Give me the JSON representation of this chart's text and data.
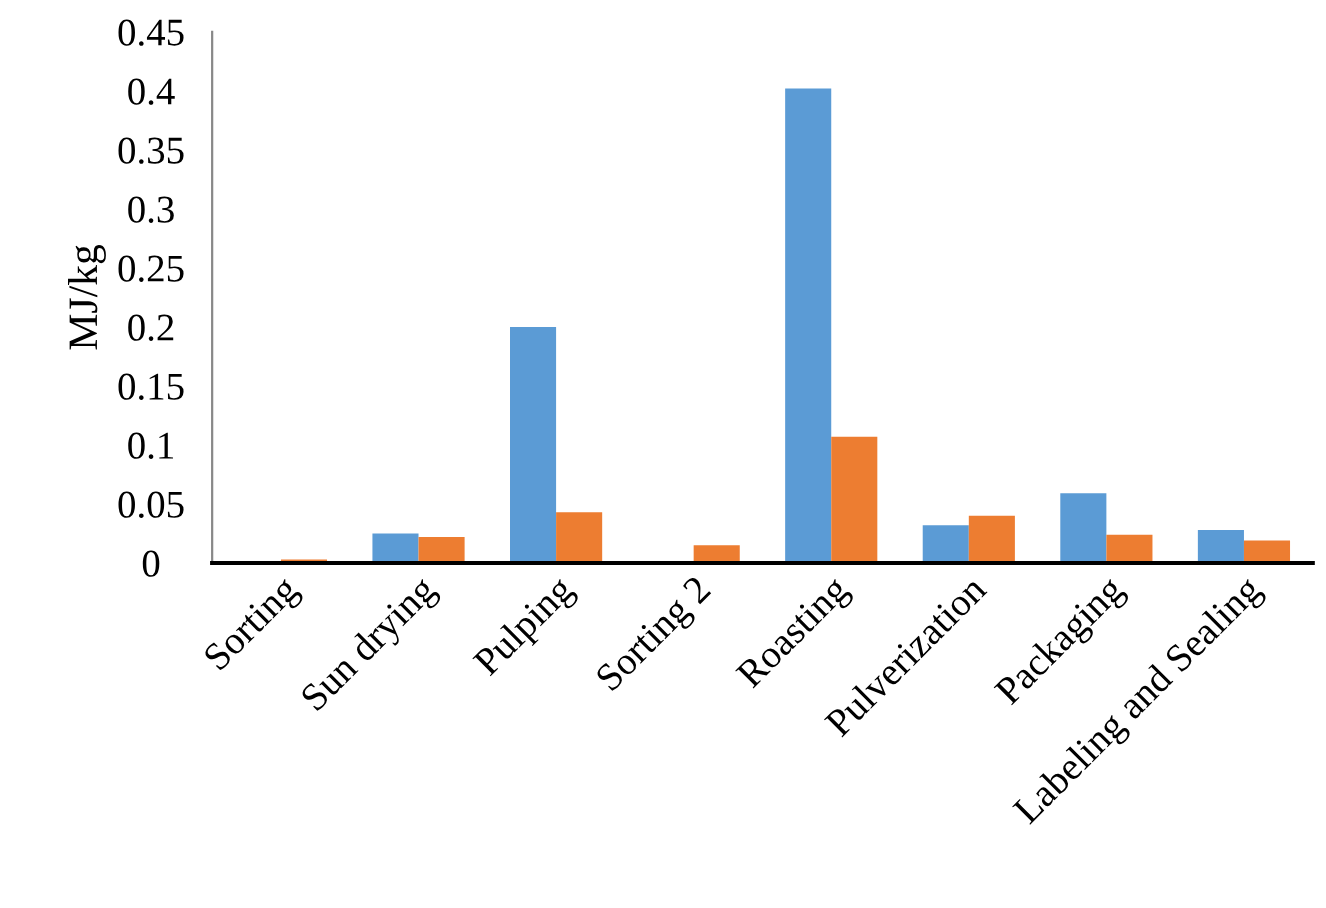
{
  "chart_data": {
    "type": "bar",
    "ylabel": "MJ/kg",
    "categories": [
      "Sorting",
      "Sun drying",
      "Pulping",
      "Sorting 2",
      "Roasting",
      "Pulverization",
      "Packaging",
      "Labeling and Sealing"
    ],
    "series": [
      {
        "color": "#5b9bd5",
        "values": [
          0,
          0.025,
          0.2,
          0,
          0.402,
          0.032,
          0.059,
          0.028
        ]
      },
      {
        "color": "#ed7d31",
        "values": [
          0.003,
          0.022,
          0.043,
          0.015,
          0.107,
          0.04,
          0.024,
          0.019
        ]
      }
    ],
    "ylim": [
      0,
      0.45
    ],
    "yticks": [
      0,
      0.05,
      0.1,
      0.15,
      0.2,
      0.25,
      0.3,
      0.35,
      0.4,
      0.45
    ],
    "grid": false
  }
}
